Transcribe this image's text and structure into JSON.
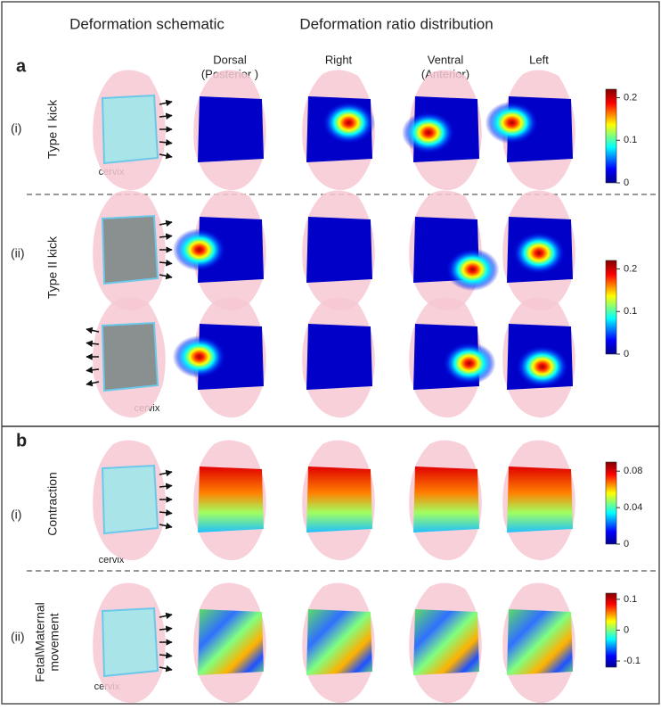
{
  "headers": {
    "schematic": "Deformation schematic",
    "distribution": "Deformation ratio distribution"
  },
  "columns": [
    {
      "label": "Dorsal",
      "sub": "(Posterior )"
    },
    {
      "label": "Right"
    },
    {
      "label": "Ventral",
      "sub": "(Anterior)"
    },
    {
      "label": "Left"
    }
  ],
  "panels": [
    {
      "label": "a",
      "rows": [
        {
          "roman": "(i)",
          "name": "Type I kick",
          "annotation": "cervix"
        },
        {
          "roman": "(ii)",
          "name": "Type II kick",
          "annotation": "cervix"
        }
      ],
      "colorbars": [
        {
          "lim": [
            0,
            0.22
          ],
          "ticks": [
            0,
            0.1,
            0.2
          ]
        },
        {
          "lim": [
            0,
            0.22
          ],
          "ticks": [
            0,
            0.1,
            0.2
          ]
        }
      ]
    },
    {
      "label": "b",
      "rows": [
        {
          "roman": "(i)",
          "name": "Contraction",
          "annotation": "cervix"
        },
        {
          "roman": "(ii)",
          "name": [
            "Fetal\\Maternal",
            "movement"
          ],
          "annotation": "cervix"
        }
      ],
      "colorbars": [
        {
          "lim": [
            0,
            0.09
          ],
          "ticks": [
            0,
            0.04,
            0.08
          ]
        },
        {
          "lim": [
            -0.12,
            0.12
          ],
          "ticks": [
            -0.1,
            0,
            0.1
          ]
        }
      ]
    }
  ]
}
